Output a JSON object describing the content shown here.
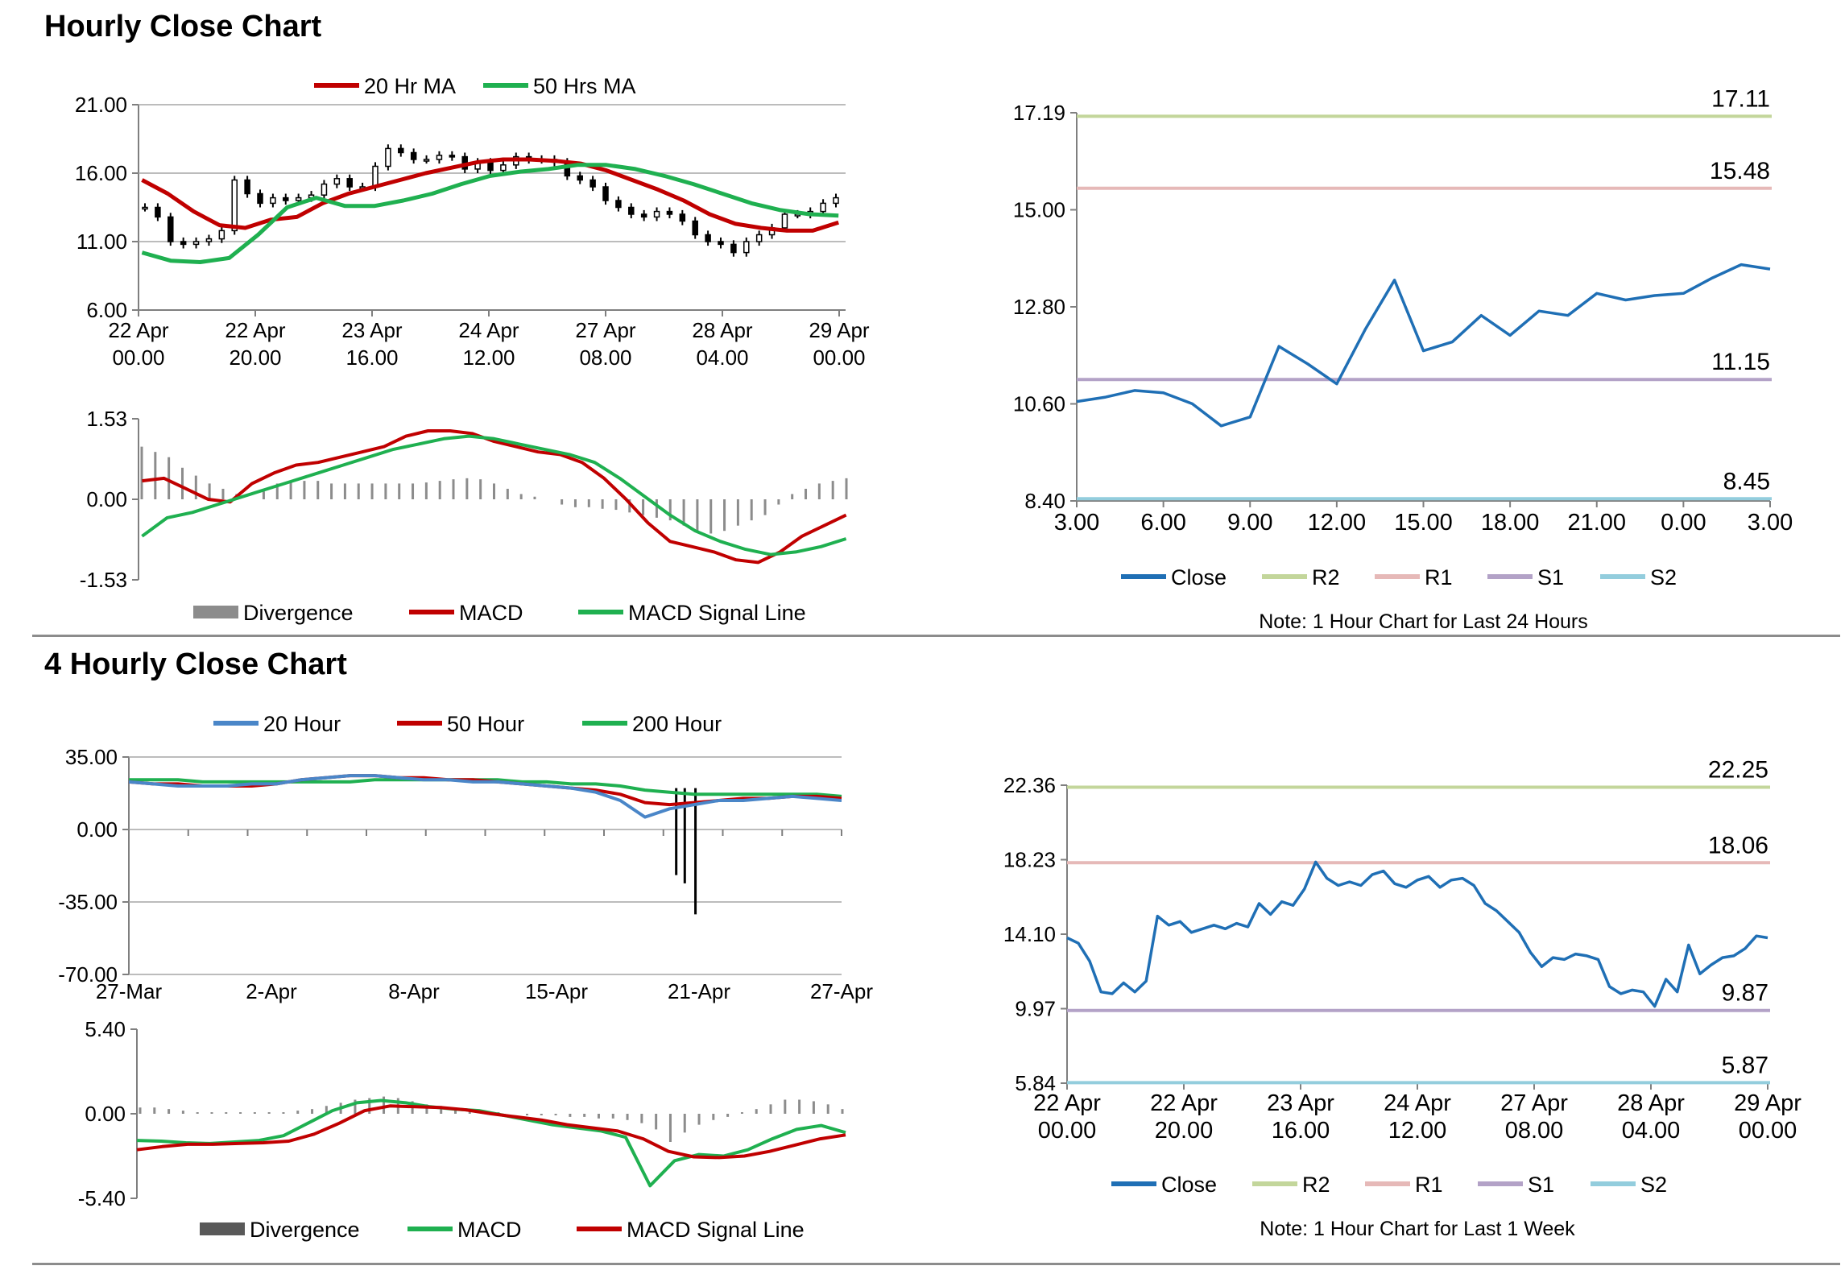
{
  "page": {
    "hourly_title": "Hourly Close Chart",
    "four_hourly_title": "4 Hourly Close Chart"
  },
  "colors": {
    "red": "#c00000",
    "green": "#1fb050",
    "blue": "#1f6fb5",
    "lightblue": "#4a86c8",
    "r2": "#c3d69b",
    "r1": "#e6b9b8",
    "s1": "#b3a2c7",
    "s2": "#93cddd",
    "grid": "#a6a6a6",
    "divergence": "#8c8c8c",
    "candle": "#000000"
  },
  "chart_data": [
    {
      "id": "hourly-price",
      "type": "line",
      "title": "",
      "legend": {
        "placement": "top",
        "entries": [
          "20 Hr MA",
          "50 Hrs MA"
        ]
      },
      "grid": true,
      "ylim": [
        6.0,
        21.0
      ],
      "yticks": [
        "21.00",
        "16.00",
        "11.00",
        "6.00"
      ],
      "xticks": [
        {
          "l1": "22 Apr",
          "l2": "00.00"
        },
        {
          "l1": "22 Apr",
          "l2": "20.00"
        },
        {
          "l1": "23 Apr",
          "l2": "16.00"
        },
        {
          "l1": "24 Apr",
          "l2": "12.00"
        },
        {
          "l1": "27 Apr",
          "l2": "08.00"
        },
        {
          "l1": "28 Apr",
          "l2": "04.00"
        },
        {
          "l1": "29 Apr",
          "l2": "00.00"
        }
      ],
      "candles_close": [
        13.5,
        12.8,
        11.0,
        10.8,
        11.0,
        11.2,
        11.8,
        15.5,
        14.5,
        13.8,
        14.2,
        14.0,
        14.2,
        14.4,
        15.2,
        15.6,
        15.0,
        15.0,
        16.5,
        17.8,
        17.5,
        17.0,
        17.0,
        17.3,
        17.2,
        16.3,
        16.8,
        16.2,
        16.6,
        17.2,
        17.0,
        17.0,
        16.8,
        15.8,
        15.5,
        15.0,
        14.0,
        13.5,
        13.0,
        12.8,
        13.2,
        13.0,
        12.5,
        11.5,
        11.0,
        10.8,
        10.2,
        11.0,
        11.5,
        12.0,
        13.0,
        13.0,
        13.2,
        13.8,
        14.2
      ],
      "series": [
        {
          "name": "20 Hr MA",
          "color": "red",
          "values": [
            15.5,
            14.5,
            13.2,
            12.2,
            12.0,
            12.6,
            12.8,
            13.8,
            14.5,
            15.0,
            15.5,
            16.0,
            16.4,
            16.8,
            17.0,
            17.0,
            16.9,
            16.7,
            16.2,
            15.5,
            14.8,
            14.0,
            13.0,
            12.3,
            12.0,
            11.8,
            11.8,
            12.4
          ]
        },
        {
          "name": "50 Hrs MA",
          "color": "green",
          "values": [
            10.2,
            9.6,
            9.5,
            9.8,
            11.5,
            13.5,
            14.2,
            13.6,
            13.6,
            14.0,
            14.5,
            15.2,
            15.8,
            16.1,
            16.3,
            16.6,
            16.6,
            16.3,
            15.8,
            15.2,
            14.5,
            13.8,
            13.3,
            13.0,
            12.9
          ]
        }
      ]
    },
    {
      "id": "hourly-macd",
      "type": "line",
      "title": "",
      "legend": {
        "placement": "bottom",
        "entries": [
          "Divergence",
          "MACD",
          "MACD Signal Line"
        ]
      },
      "grid": false,
      "ylim": [
        -1.53,
        1.53
      ],
      "yticks": [
        "1.53",
        "0.00",
        "-1.53"
      ],
      "divergence": [
        1.0,
        0.9,
        0.8,
        0.6,
        0.45,
        0.3,
        0.2,
        0.1,
        0.0,
        0.15,
        0.3,
        0.35,
        0.35,
        0.35,
        0.3,
        0.3,
        0.3,
        0.3,
        0.3,
        0.3,
        0.3,
        0.32,
        0.35,
        0.38,
        0.4,
        0.38,
        0.3,
        0.2,
        0.1,
        0.05,
        0.0,
        -0.1,
        -0.15,
        -0.15,
        -0.18,
        -0.2,
        -0.25,
        -0.3,
        -0.35,
        -0.4,
        -0.5,
        -0.6,
        -0.65,
        -0.6,
        -0.5,
        -0.4,
        -0.3,
        -0.1,
        0.1,
        0.2,
        0.3,
        0.35,
        0.4
      ],
      "series": [
        {
          "name": "MACD",
          "color": "red",
          "values": [
            0.35,
            0.4,
            0.2,
            0.0,
            -0.05,
            0.3,
            0.5,
            0.65,
            0.7,
            0.8,
            0.9,
            1.0,
            1.2,
            1.3,
            1.3,
            1.25,
            1.1,
            1.0,
            0.9,
            0.85,
            0.7,
            0.4,
            0.0,
            -0.45,
            -0.8,
            -0.9,
            -1.0,
            -1.15,
            -1.2,
            -1.0,
            -0.7,
            -0.5,
            -0.3
          ]
        },
        {
          "name": "MACD Signal Line",
          "color": "green",
          "values": [
            -0.7,
            -0.35,
            -0.25,
            -0.1,
            0.05,
            0.2,
            0.35,
            0.5,
            0.65,
            0.8,
            0.95,
            1.05,
            1.15,
            1.2,
            1.15,
            1.05,
            0.95,
            0.85,
            0.7,
            0.4,
            0.05,
            -0.3,
            -0.6,
            -0.8,
            -0.95,
            -1.05,
            -1.0,
            -0.9,
            -0.75
          ]
        }
      ]
    },
    {
      "id": "hourly-close",
      "type": "line",
      "title": "",
      "note": "Note: 1 Hour Chart for Last 24 Hours",
      "legend": {
        "placement": "bottom",
        "entries": [
          "Close",
          "R2",
          "R1",
          "S1",
          "S2"
        ]
      },
      "grid": false,
      "ylim": [
        8.4,
        17.19
      ],
      "yticks": [
        "17.19",
        "15.00",
        "12.80",
        "10.60",
        "8.40"
      ],
      "xticks": [
        "3.00",
        "6.00",
        "9.00",
        "12.00",
        "15.00",
        "18.00",
        "21.00",
        "0.00",
        "3.00"
      ],
      "series": [
        {
          "name": "Close",
          "color": "blue",
          "values": [
            10.65,
            10.75,
            10.9,
            10.85,
            10.6,
            10.1,
            10.3,
            11.9,
            11.5,
            11.05,
            12.3,
            13.4,
            11.8,
            12.0,
            12.6,
            12.15,
            12.7,
            12.6,
            13.1,
            12.95,
            13.05,
            13.1,
            13.45,
            13.75,
            13.65
          ]
        },
        {
          "name": "R2",
          "color": "r2",
          "level": 17.11,
          "label": "17.11"
        },
        {
          "name": "R1",
          "color": "r1",
          "level": 15.48,
          "label": "15.48"
        },
        {
          "name": "S1",
          "color": "s1",
          "level": 11.15,
          "label": "11.15"
        },
        {
          "name": "S2",
          "color": "s2",
          "level": 8.45,
          "label": "8.45"
        }
      ]
    },
    {
      "id": "four-hourly-price",
      "type": "line",
      "title": "",
      "legend": {
        "placement": "top",
        "entries": [
          "20 Hour",
          "50 Hour",
          "200 Hour"
        ]
      },
      "grid": true,
      "ylim": [
        -70.0,
        35.0
      ],
      "yticks": [
        "35.00",
        "0.00",
        "-35.00",
        "-70.00"
      ],
      "xticks": [
        "27-Mar",
        "2-Apr",
        "8-Apr",
        "15-Apr",
        "21-Apr",
        "27-Apr"
      ],
      "spikes": [
        {
          "x": 0.795,
          "low": -41
        },
        {
          "x": 0.78,
          "low": -26
        },
        {
          "x": 0.768,
          "low": -22
        }
      ],
      "series": [
        {
          "name": "20 Hour",
          "color": "lightblue",
          "values": [
            23,
            22,
            21,
            21,
            21,
            22,
            22,
            24,
            25,
            26,
            26,
            25,
            24,
            24,
            23,
            23,
            22,
            21,
            20,
            18,
            14,
            6,
            10,
            12,
            14,
            14,
            15,
            16,
            15,
            14
          ]
        },
        {
          "name": "50 Hour",
          "color": "red",
          "values": [
            23,
            22,
            22,
            21,
            21,
            21,
            22,
            24,
            25,
            26,
            26,
            25,
            25,
            24,
            24,
            23,
            22,
            21,
            20,
            19,
            17,
            13,
            12,
            13,
            14,
            15,
            15,
            16,
            16,
            15
          ]
        },
        {
          "name": "200 Hour",
          "color": "green",
          "values": [
            24,
            24,
            24,
            23,
            23,
            23,
            23,
            23,
            23,
            23,
            24,
            24,
            24,
            24,
            24,
            24,
            23,
            23,
            22,
            22,
            21,
            19,
            18,
            17,
            17,
            17,
            17,
            17,
            17,
            16
          ]
        }
      ]
    },
    {
      "id": "four-hourly-macd",
      "type": "line",
      "title": "",
      "legend": {
        "placement": "bottom",
        "entries": [
          "Divergence",
          "MACD",
          "MACD Signal Line"
        ]
      },
      "grid": false,
      "ylim": [
        -5.4,
        5.4
      ],
      "yticks": [
        "5.40",
        "0.00",
        "-5.40"
      ],
      "divergence": [
        0.4,
        0.4,
        0.3,
        0.2,
        0.1,
        0.1,
        0.1,
        0.1,
        0.1,
        0.1,
        0.1,
        0.2,
        0.3,
        0.5,
        0.7,
        0.9,
        1.0,
        1.1,
        1.0,
        0.8,
        0.6,
        0.5,
        0.4,
        0.3,
        0.2,
        0.1,
        0.0,
        -0.1,
        -0.1,
        -0.1,
        -0.2,
        -0.2,
        -0.3,
        -0.3,
        -0.4,
        -0.6,
        -1.0,
        -1.8,
        -1.2,
        -0.7,
        -0.4,
        -0.2,
        0.1,
        0.3,
        0.6,
        0.9,
        0.9,
        0.8,
        0.6,
        0.3
      ],
      "series": [
        {
          "name": "MACD",
          "color": "green",
          "values": [
            -1.7,
            -1.75,
            -1.85,
            -1.9,
            -1.8,
            -1.7,
            -1.4,
            -0.6,
            0.2,
            0.7,
            0.85,
            0.7,
            0.45,
            0.3,
            0.2,
            -0.1,
            -0.4,
            -0.7,
            -0.9,
            -1.1,
            -1.5,
            -4.6,
            -3.0,
            -2.6,
            -2.7,
            -2.3,
            -1.6,
            -1.0,
            -0.75,
            -1.2
          ]
        },
        {
          "name": "MACD Signal Line",
          "color": "red",
          "values": [
            -2.3,
            -2.1,
            -1.95,
            -1.95,
            -1.9,
            -1.85,
            -1.75,
            -1.3,
            -0.6,
            0.2,
            0.5,
            0.45,
            0.4,
            0.25,
            0.0,
            -0.2,
            -0.4,
            -0.7,
            -0.9,
            -1.1,
            -1.6,
            -2.4,
            -2.75,
            -2.8,
            -2.7,
            -2.4,
            -2.0,
            -1.6,
            -1.35
          ]
        }
      ]
    },
    {
      "id": "four-hourly-close",
      "type": "line",
      "title": "",
      "note": "Note: 1 Hour Chart for Last 1 Week",
      "legend": {
        "placement": "bottom",
        "entries": [
          "Close",
          "R2",
          "R1",
          "S1",
          "S2"
        ]
      },
      "grid": false,
      "ylim": [
        5.84,
        22.36
      ],
      "yticks": [
        "22.36",
        "18.23",
        "14.10",
        "9.97",
        "5.84"
      ],
      "xticks": [
        {
          "l1": "22 Apr",
          "l2": "00.00"
        },
        {
          "l1": "22 Apr",
          "l2": "20.00"
        },
        {
          "l1": "23 Apr",
          "l2": "16.00"
        },
        {
          "l1": "24 Apr",
          "l2": "12.00"
        },
        {
          "l1": "27 Apr",
          "l2": "08.00"
        },
        {
          "l1": "28 Apr",
          "l2": "04.00"
        },
        {
          "l1": "29 Apr",
          "l2": "00.00"
        }
      ],
      "series": [
        {
          "name": "Close",
          "color": "blue",
          "values": [
            13.9,
            13.6,
            12.6,
            10.9,
            10.8,
            11.4,
            10.9,
            11.5,
            15.1,
            14.6,
            14.8,
            14.2,
            14.4,
            14.6,
            14.4,
            14.7,
            14.5,
            15.8,
            15.2,
            15.9,
            15.7,
            16.6,
            18.1,
            17.2,
            16.8,
            17.0,
            16.8,
            17.4,
            17.6,
            16.9,
            16.7,
            17.1,
            17.3,
            16.7,
            17.1,
            17.2,
            16.8,
            15.8,
            15.4,
            14.8,
            14.2,
            13.1,
            12.3,
            12.8,
            12.7,
            13.0,
            12.9,
            12.7,
            11.2,
            10.8,
            11.0,
            10.9,
            10.1,
            11.6,
            10.9,
            13.5,
            11.9,
            12.4,
            12.8,
            12.9,
            13.3,
            14.0,
            13.9
          ]
        },
        {
          "name": "R2",
          "color": "r2",
          "level": 22.25,
          "label": "22.25"
        },
        {
          "name": "R1",
          "color": "r1",
          "level": 18.06,
          "label": "18.06"
        },
        {
          "name": "S1",
          "color": "s1",
          "level": 9.87,
          "label": "9.87"
        },
        {
          "name": "S2",
          "color": "s2",
          "level": 5.87,
          "label": "5.87"
        }
      ]
    }
  ]
}
